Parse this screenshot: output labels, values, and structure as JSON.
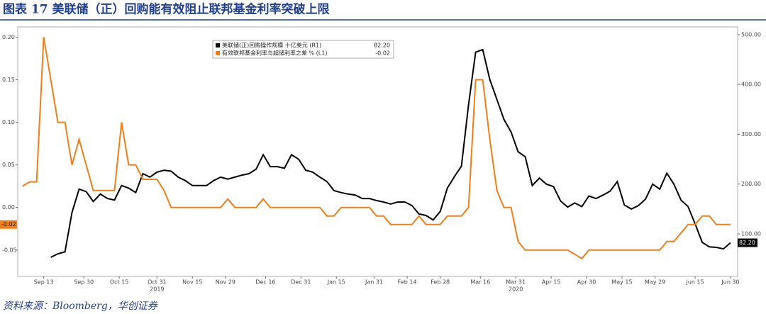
{
  "chart_data": {
    "type": "line",
    "title": "图表 17 美联储（正）回购能有效阻止联邦基金利率突破上限",
    "source": "资料来源：Bloomberg，华创证券",
    "x": [
      "2019-09-04",
      "2019-09-07",
      "2019-09-10",
      "2019-09-13",
      "2019-09-16",
      "2019-09-19",
      "2019-09-22",
      "2019-09-25",
      "2019-09-28",
      "2019-10-01",
      "2019-10-04",
      "2019-10-07",
      "2019-10-10",
      "2019-10-13",
      "2019-10-16",
      "2019-10-19",
      "2019-10-22",
      "2019-10-25",
      "2019-10-28",
      "2019-10-31",
      "2019-11-03",
      "2019-11-06",
      "2019-11-09",
      "2019-11-12",
      "2019-11-15",
      "2019-11-18",
      "2019-11-21",
      "2019-11-24",
      "2019-11-27",
      "2019-11-30",
      "2019-12-03",
      "2019-12-06",
      "2019-12-09",
      "2019-12-12",
      "2019-12-15",
      "2019-12-18",
      "2019-12-21",
      "2019-12-24",
      "2019-12-27",
      "2019-12-30",
      "2020-01-02",
      "2020-01-05",
      "2020-01-08",
      "2020-01-11",
      "2020-01-14",
      "2020-01-17",
      "2020-01-20",
      "2020-01-23",
      "2020-01-26",
      "2020-01-29",
      "2020-02-01",
      "2020-02-04",
      "2020-02-07",
      "2020-02-10",
      "2020-02-13",
      "2020-02-16",
      "2020-02-19",
      "2020-02-22",
      "2020-02-25",
      "2020-02-28",
      "2020-03-02",
      "2020-03-05",
      "2020-03-08",
      "2020-03-11",
      "2020-03-14",
      "2020-03-17",
      "2020-03-20",
      "2020-03-23",
      "2020-03-26",
      "2020-03-29",
      "2020-04-01",
      "2020-04-04",
      "2020-04-07",
      "2020-04-10",
      "2020-04-13",
      "2020-04-16",
      "2020-04-19",
      "2020-04-22",
      "2020-04-25",
      "2020-04-28",
      "2020-05-01",
      "2020-05-04",
      "2020-05-07",
      "2020-05-10",
      "2020-05-13",
      "2020-05-16",
      "2020-05-19",
      "2020-05-22",
      "2020-05-25",
      "2020-05-28",
      "2020-05-31",
      "2020-06-03",
      "2020-06-06",
      "2020-06-09",
      "2020-06-12",
      "2020-06-15",
      "2020-06-18",
      "2020-06-21",
      "2020-06-24",
      "2020-06-27",
      "2020-06-30"
    ],
    "xlim": [
      "2019-09-02",
      "2020-07-03"
    ],
    "xticks": [
      {
        "value": "2019-09-13",
        "label": "Sep 13"
      },
      {
        "value": "2019-09-30",
        "label": "Sep 30"
      },
      {
        "value": "2019-10-15",
        "label": "Oct 15"
      },
      {
        "value": "2019-10-31",
        "label": "Oct 31"
      },
      {
        "value": "2019-11-15",
        "label": "Nov 15"
      },
      {
        "value": "2019-11-29",
        "label": "Nov 29"
      },
      {
        "value": "2019-12-16",
        "label": "Dec 16"
      },
      {
        "value": "2019-12-31",
        "label": "Dec 31"
      },
      {
        "value": "2020-01-15",
        "label": "Jan 15"
      },
      {
        "value": "2020-01-31",
        "label": "Jan 31"
      },
      {
        "value": "2020-02-14",
        "label": "Feb 14"
      },
      {
        "value": "2020-02-28",
        "label": "Feb 28"
      },
      {
        "value": "2020-03-16",
        "label": "Mar 16"
      },
      {
        "value": "2020-03-31",
        "label": "Mar 31"
      },
      {
        "value": "2020-04-15",
        "label": "Apr 15"
      },
      {
        "value": "2020-04-30",
        "label": "Apr 30"
      },
      {
        "value": "2020-05-15",
        "label": "May 15"
      },
      {
        "value": "2020-05-29",
        "label": "May 29"
      },
      {
        "value": "2020-06-15",
        "label": "Jun 15"
      },
      {
        "value": "2020-06-30",
        "label": "Jun 30"
      }
    ],
    "x_year_labels": [
      {
        "value": "2019-10-31",
        "label": "2019"
      },
      {
        "value": "2020-03-31",
        "label": "2020"
      }
    ],
    "ylim": [
      -0.081,
      0.212
    ],
    "yticks": [
      {
        "value": -0.05,
        "label": "-0.05"
      },
      {
        "value": 0,
        "label": "0.00"
      },
      {
        "value": 0.05,
        "label": "0.05"
      },
      {
        "value": 0.1,
        "label": "0.10"
      },
      {
        "value": 0.15,
        "label": "0.15"
      },
      {
        "value": 0.2,
        "label": "0.20"
      }
    ],
    "y2lim": [
      14.6,
      515.6
    ],
    "y2ticks": [
      {
        "value": 100,
        "label": "100.00"
      },
      {
        "value": 200,
        "label": "200.00"
      },
      {
        "value": 300,
        "label": "300.00"
      },
      {
        "value": 400,
        "label": "400.00"
      },
      {
        "value": 500,
        "label": "500.00"
      }
    ],
    "legend_position": "upper left",
    "series": [
      {
        "name": "美联储(正)回购操作规模 十亿美元 (R1)",
        "color": "#000000",
        "axis": "y2",
        "last_label": "82.20",
        "values": [
          null,
          null,
          null,
          null,
          53,
          60,
          64,
          143,
          190,
          185,
          165,
          180,
          171,
          168,
          197,
          192,
          183,
          221,
          214,
          224,
          228,
          226,
          214,
          207,
          197,
          197,
          197,
          207,
          214,
          210,
          214,
          218,
          221,
          230,
          259,
          235,
          235,
          232,
          259,
          250,
          228,
          224,
          214,
          205,
          187,
          183,
          180,
          178,
          171,
          171,
          167,
          164,
          160,
          164,
          164,
          157,
          140,
          137,
          128,
          145,
          192,
          215,
          236,
          359,
          465,
          470,
          410,
          370,
          330,
          305,
          265,
          255,
          197,
          212,
          200,
          195,
          166,
          154,
          162,
          155,
          176,
          171,
          178,
          186,
          205,
          158,
          150,
          157,
          170,
          200,
          190,
          222,
          200,
          168,
          155,
          120,
          83,
          74,
          73,
          70,
          82.2
        ]
      },
      {
        "name": "有效联邦基金利率与超储利率之差 % (L1)",
        "color": "#f07f1a",
        "last_label": "-0.02",
        "values": [
          0.025,
          0.03,
          0.03,
          0.2,
          0.15,
          0.1,
          0.1,
          0.05,
          0.08,
          0.05,
          0.02,
          0.02,
          0.02,
          0.02,
          0.1,
          0.05,
          0.05,
          0.033,
          0.033,
          0.033,
          0.02,
          0,
          0,
          0,
          0,
          0,
          0,
          0,
          0,
          0.01,
          0,
          0,
          0,
          0,
          0.01,
          0,
          0,
          0,
          0,
          0,
          0,
          0,
          0,
          -0.01,
          -0.01,
          0,
          0,
          0,
          0,
          0,
          -0.01,
          -0.01,
          -0.02,
          -0.02,
          -0.02,
          -0.02,
          -0.01,
          -0.02,
          -0.02,
          -0.02,
          -0.01,
          -0.01,
          -0.01,
          0,
          0.15,
          0.15,
          0.08,
          0.02,
          0,
          0,
          -0.04,
          -0.05,
          -0.05,
          -0.05,
          -0.05,
          -0.05,
          -0.05,
          -0.05,
          -0.055,
          -0.06,
          -0.05,
          -0.05,
          -0.05,
          -0.05,
          -0.05,
          -0.05,
          -0.05,
          -0.05,
          -0.05,
          -0.05,
          -0.05,
          -0.04,
          -0.04,
          -0.03,
          -0.02,
          -0.02,
          -0.01,
          -0.01,
          -0.02,
          -0.02,
          -0.02
        ]
      }
    ]
  }
}
